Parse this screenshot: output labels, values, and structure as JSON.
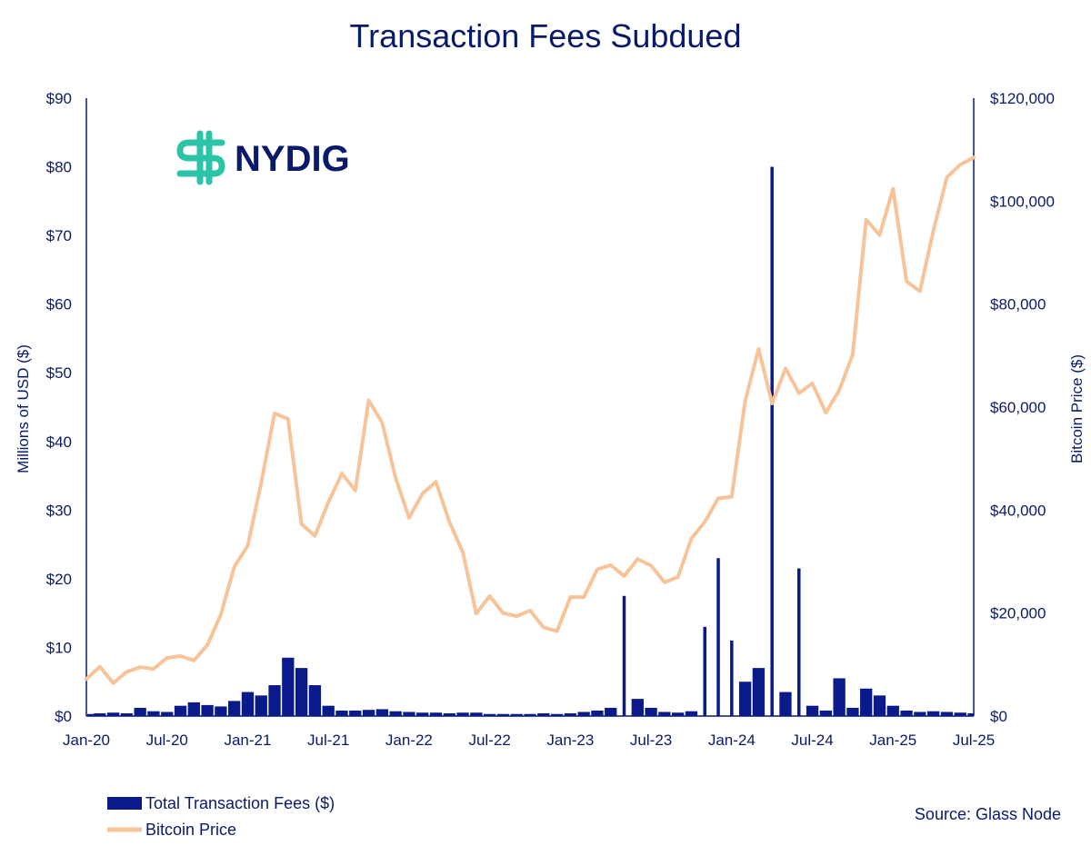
{
  "colors": {
    "fees": "#0a1a8a",
    "price": "#f7c499",
    "axis": "#0a1a6b",
    "logo_accent": "#2bc4a8"
  },
  "logo": {
    "text": "NYDIG",
    "icon": "nydig-dollar-logo-icon"
  },
  "source": "Source: Glass Node",
  "chart_data": {
    "type": "bar+line",
    "title": "Transaction Fees Subdued",
    "ylabel_left": "Millions of USD ($)",
    "ylabel_right": "Bitcoin Price ($)",
    "ylim_left": [
      0,
      90
    ],
    "ylim_right": [
      0,
      120000
    ],
    "yticks_left": [
      "$0",
      "$10",
      "$20",
      "$30",
      "$40",
      "$50",
      "$60",
      "$70",
      "$80",
      "$90"
    ],
    "yticks_right": [
      "$0",
      "$20,000",
      "$40,000",
      "$60,000",
      "$80,000",
      "$100,000",
      "$120,000"
    ],
    "xticks": [
      "Jan-20",
      "Jul-20",
      "Jan-21",
      "Jul-21",
      "Jan-22",
      "Jul-22",
      "Jan-23",
      "Jul-23",
      "Jan-24",
      "Jul-24",
      "Jan-25",
      "Jul-25"
    ],
    "xlim": [
      "2020-01",
      "2025-07"
    ],
    "legend_placement": "bottom-left",
    "series": [
      {
        "name": "Total Transaction Fees ($)",
        "kind": "bar",
        "axis": "left",
        "points": [
          [
            "2020-01",
            0.3
          ],
          [
            "2020-02",
            0.4
          ],
          [
            "2020-03",
            0.5
          ],
          [
            "2020-04",
            0.4
          ],
          [
            "2020-05",
            1.2
          ],
          [
            "2020-06",
            0.7
          ],
          [
            "2020-07",
            0.6
          ],
          [
            "2020-08",
            1.5
          ],
          [
            "2020-09",
            2.0
          ],
          [
            "2020-10",
            1.6
          ],
          [
            "2020-11",
            1.4
          ],
          [
            "2020-12",
            2.2
          ],
          [
            "2021-01",
            3.5
          ],
          [
            "2021-02",
            3.0
          ],
          [
            "2021-03",
            4.5
          ],
          [
            "2021-04",
            8.5
          ],
          [
            "2021-05",
            7.0
          ],
          [
            "2021-06",
            4.5
          ],
          [
            "2021-07",
            1.5
          ],
          [
            "2021-08",
            0.8
          ],
          [
            "2021-09",
            0.8
          ],
          [
            "2021-10",
            0.9
          ],
          [
            "2021-11",
            1.0
          ],
          [
            "2021-12",
            0.7
          ],
          [
            "2022-01",
            0.6
          ],
          [
            "2022-02",
            0.5
          ],
          [
            "2022-03",
            0.5
          ],
          [
            "2022-04",
            0.4
          ],
          [
            "2022-05",
            0.5
          ],
          [
            "2022-06",
            0.5
          ],
          [
            "2022-07",
            0.3
          ],
          [
            "2022-08",
            0.3
          ],
          [
            "2022-09",
            0.3
          ],
          [
            "2022-10",
            0.3
          ],
          [
            "2022-11",
            0.4
          ],
          [
            "2022-12",
            0.3
          ],
          [
            "2023-01",
            0.4
          ],
          [
            "2023-02",
            0.6
          ],
          [
            "2023-03",
            0.8
          ],
          [
            "2023-04",
            1.2
          ],
          [
            "2023-05",
            17.5
          ],
          [
            "2023-06",
            2.5
          ],
          [
            "2023-07",
            1.2
          ],
          [
            "2023-08",
            0.6
          ],
          [
            "2023-09",
            0.5
          ],
          [
            "2023-10",
            0.7
          ],
          [
            "2023-11",
            13.0
          ],
          [
            "2023-12",
            23.0
          ],
          [
            "2024-01",
            11.0
          ],
          [
            "2024-02",
            5.0
          ],
          [
            "2024-03",
            7.0
          ],
          [
            "2024-04",
            80.0
          ],
          [
            "2024-05",
            3.5
          ],
          [
            "2024-06",
            21.5
          ],
          [
            "2024-07",
            1.5
          ],
          [
            "2024-08",
            0.8
          ],
          [
            "2024-09",
            5.5
          ],
          [
            "2024-10",
            1.2
          ],
          [
            "2024-11",
            4.0
          ],
          [
            "2024-12",
            3.0
          ],
          [
            "2025-01",
            1.5
          ],
          [
            "2025-02",
            0.8
          ],
          [
            "2025-03",
            0.6
          ],
          [
            "2025-04",
            0.7
          ],
          [
            "2025-05",
            0.6
          ],
          [
            "2025-06",
            0.5
          ],
          [
            "2025-07",
            0.4
          ]
        ]
      },
      {
        "name": "Bitcoin Price",
        "kind": "line",
        "axis": "right",
        "points": [
          [
            "2020-01",
            7200
          ],
          [
            "2020-02",
            9600
          ],
          [
            "2020-03",
            6400
          ],
          [
            "2020-04",
            8600
          ],
          [
            "2020-05",
            9500
          ],
          [
            "2020-06",
            9150
          ],
          [
            "2020-07",
            11300
          ],
          [
            "2020-08",
            11650
          ],
          [
            "2020-09",
            10800
          ],
          [
            "2020-10",
            13800
          ],
          [
            "2020-11",
            19700
          ],
          [
            "2020-12",
            29000
          ],
          [
            "2021-01",
            33100
          ],
          [
            "2021-02",
            45200
          ],
          [
            "2021-03",
            58800
          ],
          [
            "2021-04",
            57700
          ],
          [
            "2021-05",
            37300
          ],
          [
            "2021-06",
            35000
          ],
          [
            "2021-07",
            41500
          ],
          [
            "2021-08",
            47100
          ],
          [
            "2021-09",
            43800
          ],
          [
            "2021-10",
            61300
          ],
          [
            "2021-11",
            57000
          ],
          [
            "2021-12",
            46300
          ],
          [
            "2022-01",
            38500
          ],
          [
            "2022-02",
            43200
          ],
          [
            "2022-03",
            45500
          ],
          [
            "2022-04",
            37700
          ],
          [
            "2022-05",
            31800
          ],
          [
            "2022-06",
            19900
          ],
          [
            "2022-07",
            23300
          ],
          [
            "2022-08",
            20000
          ],
          [
            "2022-09",
            19400
          ],
          [
            "2022-10",
            20500
          ],
          [
            "2022-11",
            17200
          ],
          [
            "2022-12",
            16500
          ],
          [
            "2023-01",
            23100
          ],
          [
            "2023-02",
            23100
          ],
          [
            "2023-03",
            28500
          ],
          [
            "2023-04",
            29300
          ],
          [
            "2023-05",
            27200
          ],
          [
            "2023-06",
            30500
          ],
          [
            "2023-07",
            29200
          ],
          [
            "2023-08",
            26000
          ],
          [
            "2023-09",
            27000
          ],
          [
            "2023-10",
            34500
          ],
          [
            "2023-11",
            37700
          ],
          [
            "2023-12",
            42300
          ],
          [
            "2024-01",
            42600
          ],
          [
            "2024-02",
            61200
          ],
          [
            "2024-03",
            71300
          ],
          [
            "2024-04",
            60700
          ],
          [
            "2024-05",
            67500
          ],
          [
            "2024-06",
            62700
          ],
          [
            "2024-07",
            64600
          ],
          [
            "2024-08",
            58900
          ],
          [
            "2024-09",
            63300
          ],
          [
            "2024-10",
            70200
          ],
          [
            "2024-11",
            96400
          ],
          [
            "2024-12",
            93400
          ],
          [
            "2025-01",
            102400
          ],
          [
            "2025-02",
            84400
          ],
          [
            "2025-03",
            82500
          ],
          [
            "2025-04",
            94200
          ],
          [
            "2025-05",
            104600
          ],
          [
            "2025-06",
            107100
          ],
          [
            "2025-07",
            108500
          ]
        ]
      }
    ]
  }
}
